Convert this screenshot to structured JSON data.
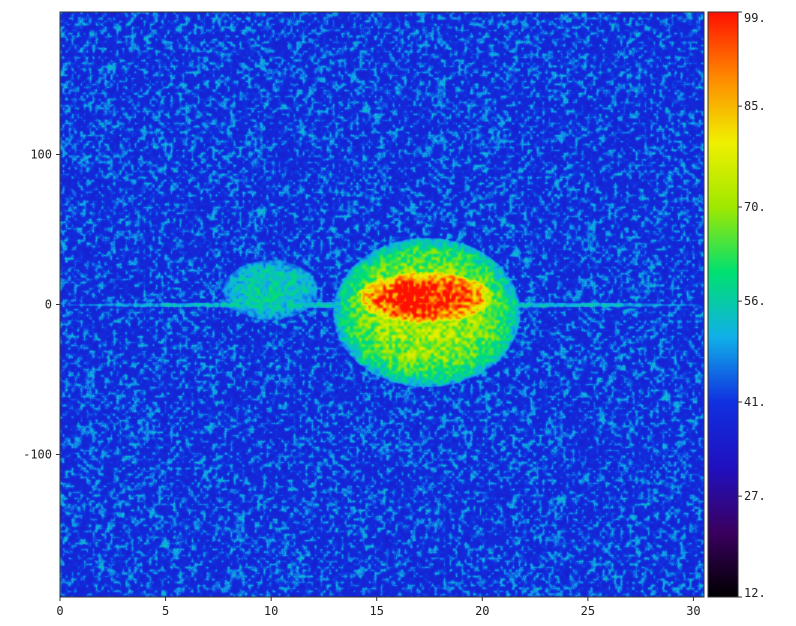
{
  "chart_data": {
    "type": "heatmap",
    "title": "",
    "xlabel": "",
    "ylabel": "",
    "xlim": [
      0,
      30.5
    ],
    "ylim": [
      -195,
      195
    ],
    "x_ticks": [
      {
        "value": 0,
        "label": "0"
      },
      {
        "value": 5,
        "label": "5"
      },
      {
        "value": 10,
        "label": "10"
      },
      {
        "value": 15,
        "label": "15"
      },
      {
        "value": 20,
        "label": "20"
      },
      {
        "value": 25,
        "label": "25"
      },
      {
        "value": 30,
        "label": "30"
      }
    ],
    "y_ticks": [
      {
        "value": 100,
        "label": "100"
      },
      {
        "value": 0,
        "label": "0"
      },
      {
        "value": -100,
        "label": "-100"
      }
    ],
    "colorbar": {
      "range": [
        12,
        99
      ],
      "ticks": [
        {
          "value": 99,
          "label": "99."
        },
        {
          "value": 85,
          "label": "85."
        },
        {
          "value": 70,
          "label": "70."
        },
        {
          "value": 56,
          "label": "56."
        },
        {
          "value": 41,
          "label": "41."
        },
        {
          "value": 27,
          "label": "27."
        },
        {
          "value": 12,
          "label": "12."
        }
      ],
      "colormap": [
        "#000000",
        "#3a0060",
        "#2010c0",
        "#1030e0",
        "#10b0e8",
        "#00e070",
        "#a0e800",
        "#f0f000",
        "#ff8800",
        "#ff1000"
      ]
    },
    "background_level": 40,
    "features": [
      {
        "name": "",
        "x_range": [
          7.7,
          12.2
        ],
        "y_range": [
          -10,
          30
        ],
        "peak": 70
      },
      {
        "name": "",
        "x_range": [
          12.9,
          21.8
        ],
        "y_range": [
          -55,
          45
        ],
        "peak": 99,
        "core_x": [
          14,
          20.5
        ],
        "core_y": [
          -12,
          22
        ]
      },
      {
        "name": "",
        "x_range": [
          0,
          30.5
        ],
        "y_range": [
          -2,
          2
        ],
        "peak": 68
      }
    ]
  }
}
